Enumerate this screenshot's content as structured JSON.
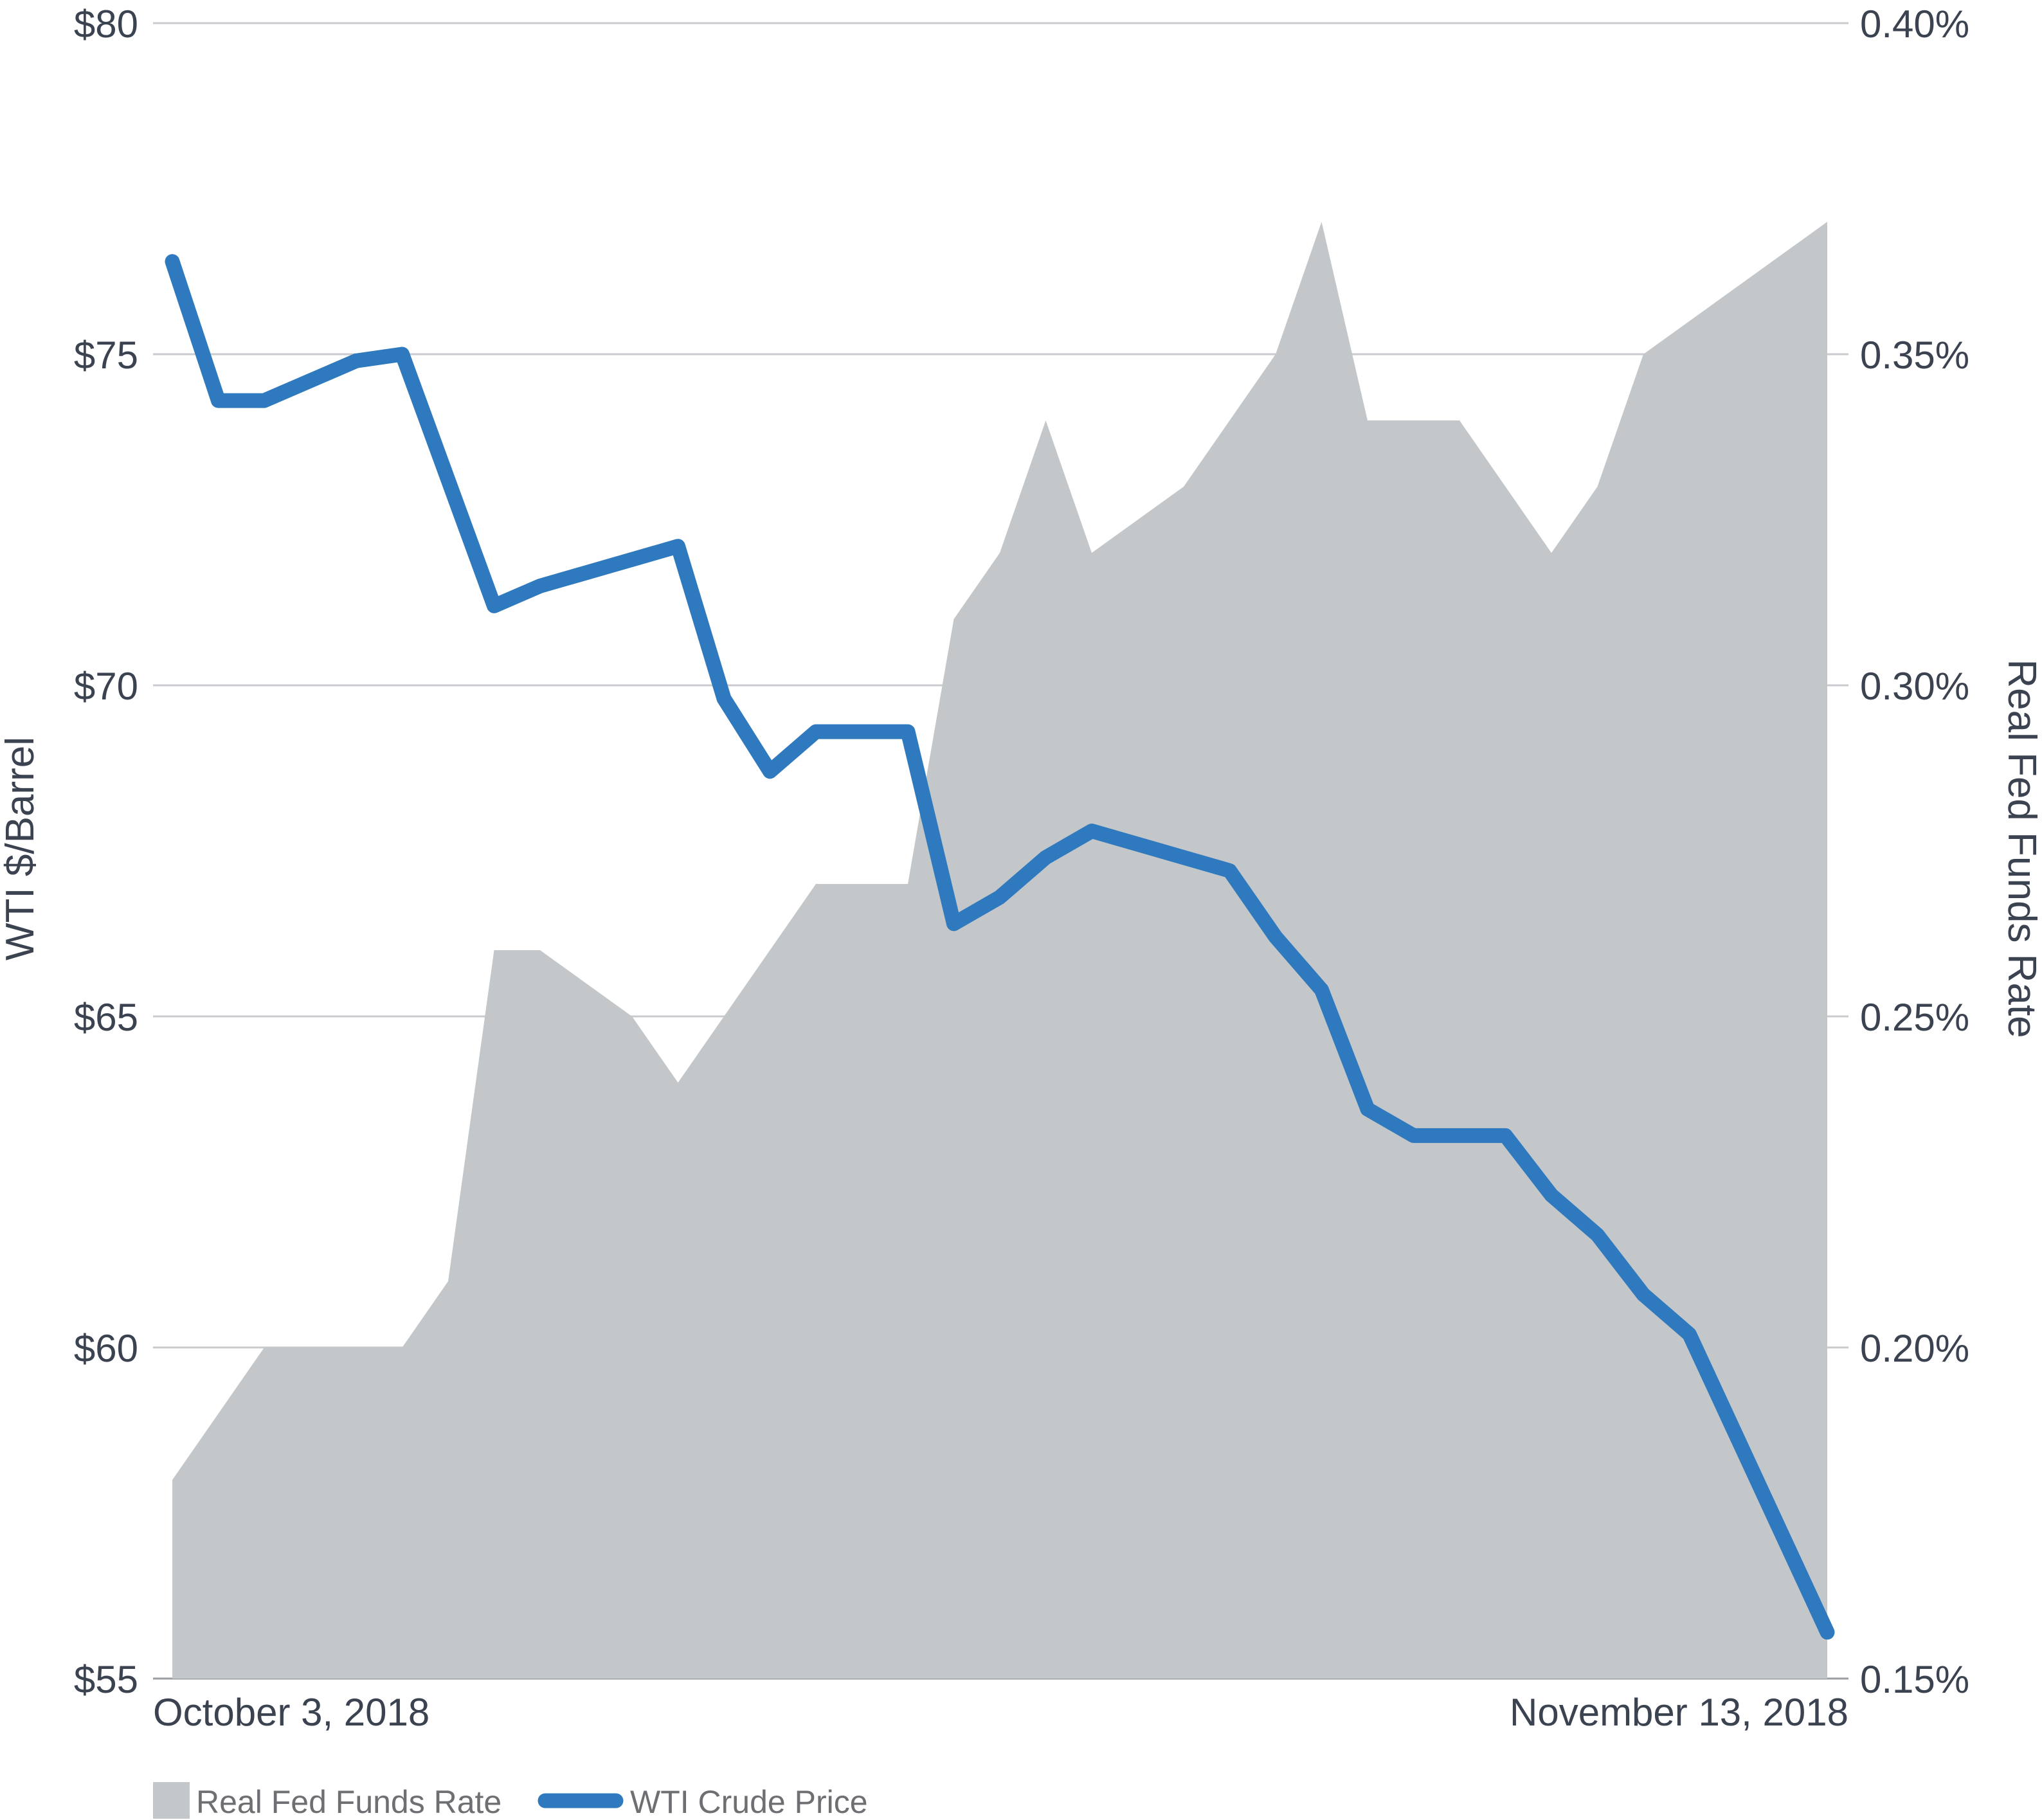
{
  "chart_data": {
    "type": "area",
    "xlabel_start": "October 3, 2018",
    "xlabel_end": "November 13, 2018",
    "y_left": {
      "label": "WTI $/Barrel",
      "range": [
        55,
        80
      ],
      "ticks": [
        80,
        75,
        70,
        65,
        60,
        55
      ],
      "tick_labels": [
        "$80",
        "$75",
        "$70",
        "$65",
        "$60",
        "$55"
      ]
    },
    "y_right": {
      "label": "Real Fed Funds Rate",
      "range": [
        0.15,
        0.4
      ],
      "ticks": [
        0.4,
        0.35,
        0.3,
        0.25,
        0.2,
        0.15
      ],
      "tick_labels": [
        "0.40%",
        "0.35%",
        "0.30%",
        "0.25%",
        "0.20%",
        "0.15%"
      ]
    },
    "grid": "horizontal",
    "legend_position": "bottom-left",
    "series": [
      {
        "name": "Real Fed Funds Rate",
        "axis": "right",
        "type": "area",
        "color": "#c4c7ca",
        "values": [
          0.18,
          0.19,
          0.2,
          0.2,
          0.2,
          0.2,
          0.21,
          0.26,
          0.26,
          0.255,
          0.25,
          0.24,
          0.25,
          0.26,
          0.27,
          0.27,
          0.27,
          0.31,
          0.32,
          0.34,
          0.32,
          0.325,
          0.33,
          0.34,
          0.35,
          0.37,
          0.34,
          0.34,
          0.34,
          0.33,
          0.32,
          0.33,
          0.35,
          0.355,
          0.36,
          0.365,
          0.37
        ]
      },
      {
        "name": "WTI Crude Price",
        "axis": "left",
        "type": "line",
        "color": "#2f79be",
        "values": [
          76.4,
          74.3,
          74.3,
          74.6,
          74.9,
          75.0,
          73.1,
          71.2,
          71.5,
          71.7,
          71.9,
          72.1,
          69.8,
          68.7,
          69.3,
          69.3,
          69.3,
          66.4,
          66.8,
          67.4,
          67.8,
          67.6,
          67.4,
          67.2,
          66.2,
          65.4,
          63.6,
          63.2,
          63.2,
          63.2,
          62.3,
          61.7,
          60.8,
          60.2,
          58.7,
          57.2,
          55.7
        ]
      }
    ]
  },
  "legend": {
    "area_label": "Real Fed Funds Rate",
    "line_label": "WTI Crude Price"
  }
}
